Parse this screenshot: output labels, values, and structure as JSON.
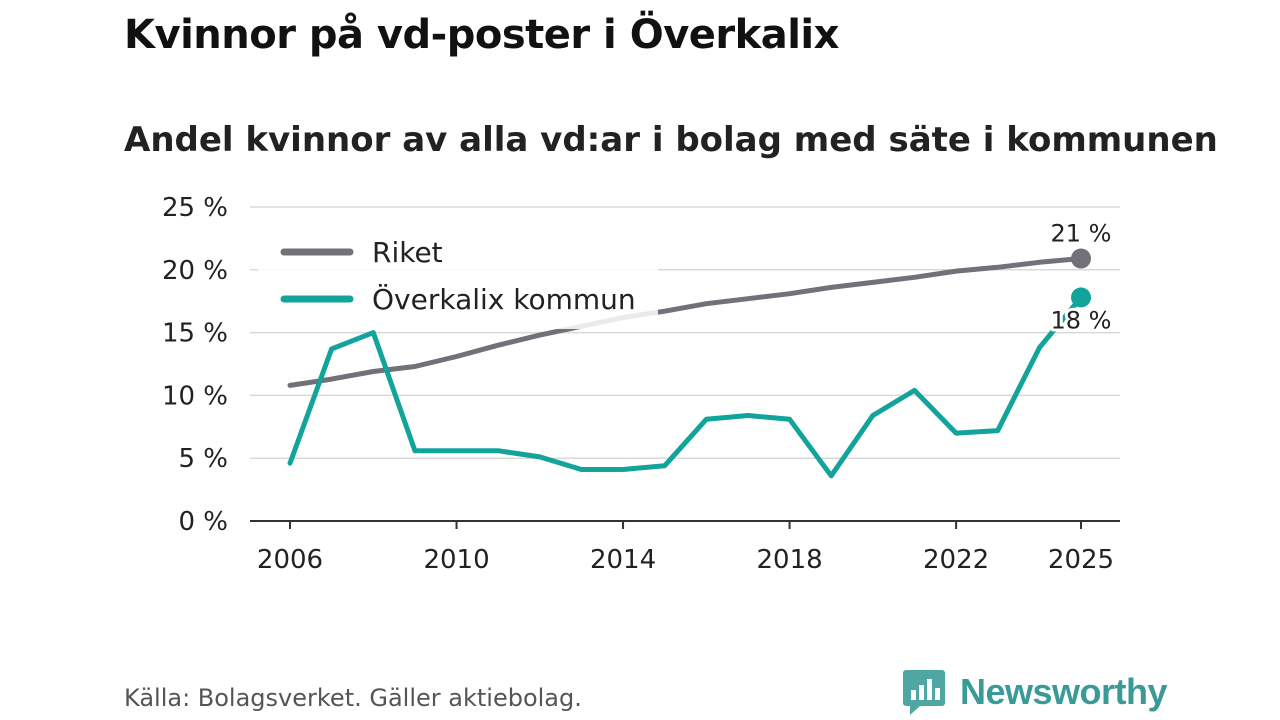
{
  "chart_data": {
    "type": "line",
    "title": "Kvinnor på vd-poster i Överkalix",
    "subtitle": "Andel kvinnor av alla vd:ar i bolag med säte i kommunen",
    "x": [
      2006,
      2007,
      2008,
      2009,
      2010,
      2011,
      2012,
      2013,
      2014,
      2015,
      2016,
      2017,
      2018,
      2019,
      2020,
      2021,
      2022,
      2023,
      2024,
      2025
    ],
    "xticks": [
      2006,
      2010,
      2014,
      2018,
      2022,
      2025
    ],
    "yticks": [
      0,
      5,
      10,
      15,
      20,
      25
    ],
    "ytick_labels": [
      "0 %",
      "5 %",
      "10 %",
      "15 %",
      "20 %",
      "25 %"
    ],
    "ylim": [
      0,
      25
    ],
    "series": [
      {
        "name": "Riket",
        "color": "#727179",
        "values": [
          10.8,
          11.3,
          11.9,
          12.3,
          13.1,
          14.0,
          14.8,
          15.5,
          16.2,
          16.7,
          17.3,
          17.7,
          18.1,
          18.6,
          19.0,
          19.4,
          19.9,
          20.2,
          20.6,
          20.9
        ],
        "end_label": "21 %"
      },
      {
        "name": "Överkalix kommun",
        "color": "#12a39b",
        "values": [
          4.6,
          13.7,
          15.0,
          5.6,
          5.6,
          5.6,
          5.1,
          4.1,
          4.1,
          4.4,
          8.1,
          8.4,
          8.1,
          3.6,
          8.4,
          10.4,
          7.0,
          7.2,
          13.8,
          17.8
        ],
        "end_label": "18 %"
      }
    ],
    "xlabel": "",
    "ylabel": "",
    "legend_position": "top-left",
    "grid": true
  },
  "footer": {
    "source": "Källa: Bolagsverket. Gäller aktiebolag.",
    "brand": "Newsworthy"
  }
}
